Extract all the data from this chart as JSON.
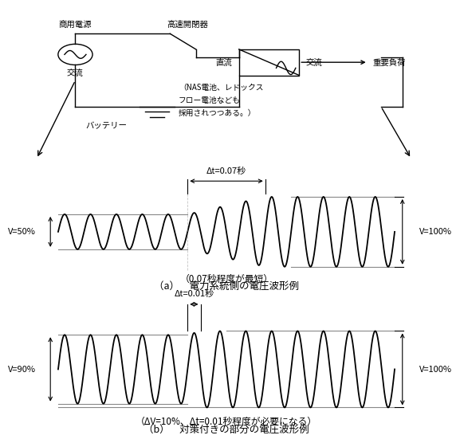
{
  "bg_color": "#ffffff",
  "line_color": "#000000",
  "gray_color": "#888888",
  "circuit": {
    "commercial_power": "商用電源",
    "high_speed_switch": "高速開閉器",
    "ac_left": "交流",
    "dc_label": "直流",
    "ac_right": "交流",
    "important_load": "重要負荷",
    "battery_label": "バッテリー",
    "battery_note_line1": "（NAS電池、レドックス",
    "battery_note_line2": "フロー電池なども",
    "battery_note_line3": "採用されつつある。）"
  },
  "wave_a": {
    "amp_low": 0.5,
    "amp_high": 1.0,
    "cycles_total": 13,
    "transition_cycle": 5,
    "transition_cycles": 3,
    "label_left": "V=50%",
    "label_right": "V=100%",
    "delta_t_label": "Δt=0.07秒",
    "note": "（0.07秒程度が最短）",
    "caption": "（a）　電力系統側の電圧波形例"
  },
  "wave_b": {
    "amp_low": 0.9,
    "amp_high": 1.0,
    "cycles_total": 13,
    "transition_cycle": 5,
    "transition_cycles": 0.5,
    "label_left": "V=90%",
    "label_right": "V=100%",
    "delta_t_label": "Δt=0.01秒",
    "note": "（ΔV=10%、Δt=0.01秒程度が必要になる）",
    "caption": "（b）　対策付きの部分の電圧波形例"
  }
}
